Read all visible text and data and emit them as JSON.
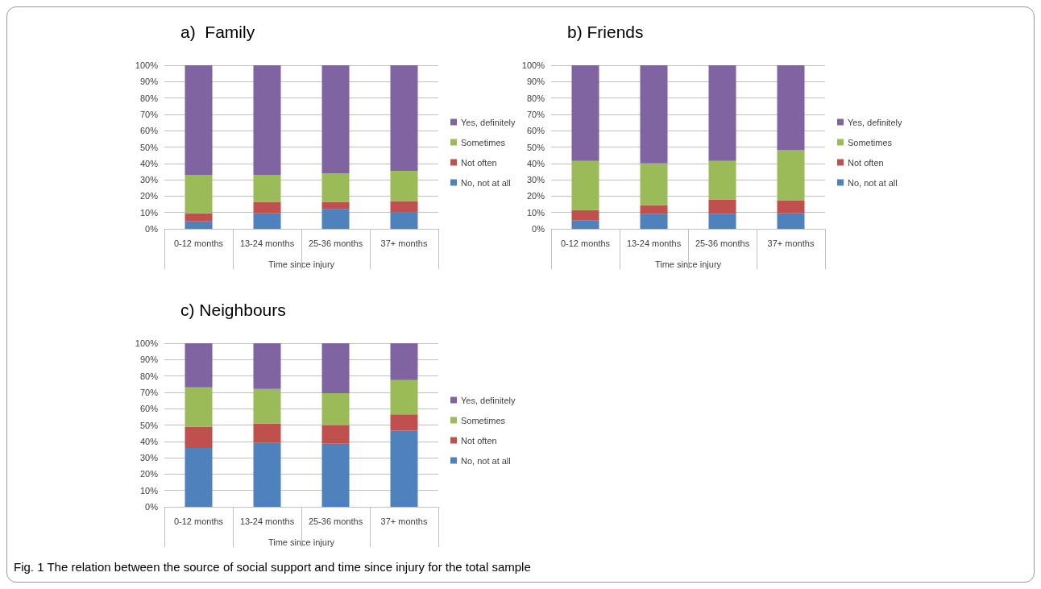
{
  "chart_data": [
    {
      "type": "bar",
      "title": "a)  Family",
      "xlabel": "Time since injury",
      "categories": [
        "0-12 months",
        "13-24 months",
        "25-36 months",
        "37+ months"
      ],
      "stacked": true,
      "ylim": [
        0,
        100
      ],
      "yticks": [
        {
          "value": 0,
          "label": "0%"
        },
        {
          "value": 10,
          "label": "10%"
        },
        {
          "value": 20,
          "label": "20%"
        },
        {
          "value": 30,
          "label": "30%"
        },
        {
          "value": 40,
          "label": "40%"
        },
        {
          "value": 50,
          "label": "50%"
        },
        {
          "value": 60,
          "label": "60%"
        },
        {
          "value": 70,
          "label": "70%"
        },
        {
          "value": 80,
          "label": "80%"
        },
        {
          "value": 90,
          "label": "90%"
        },
        {
          "value": 100,
          "label": "100%"
        }
      ],
      "grid": "y",
      "legend": "right",
      "series": [
        {
          "name": "No, not at all",
          "color": "#4f81bd",
          "values": [
            4.5,
            9.5,
            12,
            10
          ]
        },
        {
          "name": "Not often",
          "color": "#c0504d",
          "values": [
            5,
            7,
            4.5,
            7
          ]
        },
        {
          "name": "Sometimes",
          "color": "#9bbb59",
          "values": [
            23.5,
            16.5,
            17.5,
            18.5
          ]
        },
        {
          "name": "Yes, definitely",
          "color": "#8064a2",
          "values": [
            67,
            67,
            66,
            64.5
          ]
        }
      ]
    },
    {
      "type": "bar",
      "title": "b) Friends",
      "xlabel": "Time since injury",
      "categories": [
        "0-12 months",
        "13-24 months",
        "25-36 months",
        "37+ months"
      ],
      "stacked": true,
      "ylim": [
        0,
        100
      ],
      "yticks": [
        {
          "value": 0,
          "label": "0%"
        },
        {
          "value": 10,
          "label": "10%"
        },
        {
          "value": 20,
          "label": "20%"
        },
        {
          "value": 30,
          "label": "30%"
        },
        {
          "value": 40,
          "label": "40%"
        },
        {
          "value": 50,
          "label": "50%"
        },
        {
          "value": 60,
          "label": "60%"
        },
        {
          "value": 70,
          "label": "70%"
        },
        {
          "value": 80,
          "label": "80%"
        },
        {
          "value": 90,
          "label": "90%"
        },
        {
          "value": 100,
          "label": "100%"
        }
      ],
      "grid": "y",
      "legend": "right",
      "series": [
        {
          "name": "No, not at all",
          "color": "#4f81bd",
          "values": [
            5,
            9,
            9,
            9.5
          ]
        },
        {
          "name": "Not often",
          "color": "#c0504d",
          "values": [
            6.5,
            5.5,
            9,
            8
          ]
        },
        {
          "name": "Sometimes",
          "color": "#9bbb59",
          "values": [
            30,
            25.5,
            23.5,
            30.5
          ]
        },
        {
          "name": "Yes, definitely",
          "color": "#8064a2",
          "values": [
            58.5,
            60,
            58.5,
            52
          ]
        }
      ]
    },
    {
      "type": "bar",
      "title": "c) Neighbours",
      "xlabel": "Time since injury",
      "categories": [
        "0-12 months",
        "13-24 months",
        "25-36 months",
        "37+ months"
      ],
      "stacked": true,
      "ylim": [
        0,
        100
      ],
      "yticks": [
        {
          "value": 0,
          "label": "0%"
        },
        {
          "value": 10,
          "label": "10%"
        },
        {
          "value": 20,
          "label": "20%"
        },
        {
          "value": 30,
          "label": "30%"
        },
        {
          "value": 40,
          "label": "40%"
        },
        {
          "value": 50,
          "label": "50%"
        },
        {
          "value": 60,
          "label": "60%"
        },
        {
          "value": 70,
          "label": "70%"
        },
        {
          "value": 80,
          "label": "80%"
        },
        {
          "value": 90,
          "label": "90%"
        },
        {
          "value": 100,
          "label": "100%"
        }
      ],
      "grid": "y",
      "legend": "right",
      "annotations": [
        "Fig. 1 The relation between the source of social support and time since injury for the total sample"
      ],
      "series": [
        {
          "name": "No, not at all",
          "color": "#4f81bd",
          "values": [
            36,
            39,
            38.5,
            46.5
          ]
        },
        {
          "name": "Not often",
          "color": "#c0504d",
          "values": [
            13,
            12,
            11.5,
            10
          ]
        },
        {
          "name": "Sometimes",
          "color": "#9bbb59",
          "values": [
            24,
            21,
            19.5,
            21
          ]
        },
        {
          "name": "Yes, definitely",
          "color": "#8064a2",
          "values": [
            27,
            28,
            30.5,
            22.5
          ]
        }
      ]
    }
  ]
}
